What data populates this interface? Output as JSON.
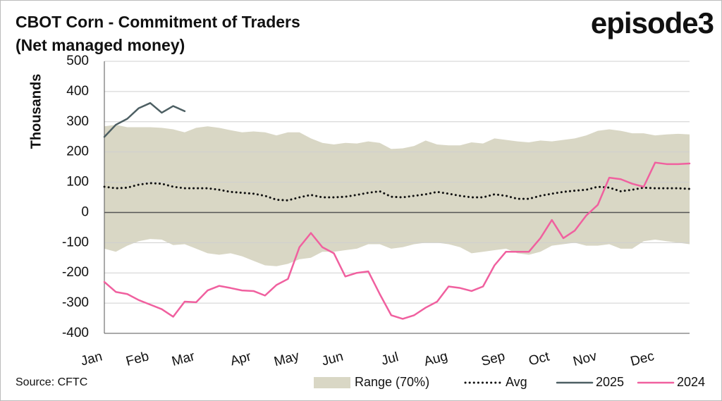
{
  "chart_data": {
    "type": "line",
    "title": "CBOT Corn - Commitment of Traders",
    "subtitle": "(Net managed money)",
    "y_label": "Thousands",
    "categories": [
      "Jan",
      null,
      null,
      null,
      "Feb",
      null,
      null,
      null,
      "Mar",
      null,
      null,
      null,
      null,
      "Apr",
      null,
      null,
      null,
      "May",
      null,
      null,
      null,
      "Jun",
      null,
      null,
      null,
      null,
      "Jul",
      null,
      null,
      null,
      "Aug",
      null,
      null,
      null,
      null,
      "Sep",
      null,
      null,
      null,
      "Oct",
      null,
      null,
      null,
      "Nov",
      null,
      null,
      null,
      null,
      "Dec",
      null,
      null,
      null
    ],
    "ylim": [
      -400,
      500
    ],
    "yticks": [
      500,
      400,
      300,
      200,
      100,
      0,
      -100,
      -200,
      -300,
      -400
    ],
    "grid": true,
    "range": {
      "name": "Range (70%)",
      "color": "#d9d7c5",
      "upper": [
        285,
        290,
        282,
        282,
        282,
        280,
        275,
        265,
        280,
        285,
        280,
        272,
        265,
        268,
        265,
        255,
        265,
        265,
        245,
        230,
        225,
        230,
        228,
        235,
        230,
        210,
        212,
        220,
        238,
        225,
        222,
        222,
        232,
        228,
        245,
        240,
        235,
        232,
        238,
        235,
        240,
        245,
        255,
        270,
        275,
        270,
        262,
        262,
        255,
        258,
        260,
        258
      ],
      "lower": [
        -120,
        -130,
        -110,
        -95,
        -88,
        -90,
        -108,
        -105,
        -120,
        -135,
        -140,
        -135,
        -145,
        -160,
        -175,
        -178,
        -170,
        -155,
        -150,
        -130,
        -130,
        -125,
        -120,
        -105,
        -105,
        -120,
        -115,
        -105,
        -100,
        -100,
        -105,
        -115,
        -135,
        -130,
        -125,
        -120,
        -135,
        -140,
        -130,
        -110,
        -105,
        -100,
        -110,
        -110,
        -105,
        -120,
        -120,
        -95,
        -90,
        -95,
        -100,
        -105
      ]
    },
    "series": [
      {
        "name": "Avg",
        "color": "#111111",
        "style": "dotted",
        "values": [
          85,
          80,
          82,
          92,
          97,
          95,
          85,
          80,
          80,
          80,
          75,
          68,
          65,
          62,
          55,
          42,
          40,
          50,
          58,
          50,
          50,
          52,
          58,
          65,
          70,
          52,
          50,
          55,
          60,
          68,
          62,
          55,
          50,
          50,
          60,
          55,
          45,
          45,
          55,
          62,
          68,
          72,
          75,
          85,
          82,
          70,
          75,
          82,
          80,
          80,
          80,
          78
        ]
      },
      {
        "name": "2025",
        "color": "#4d5f63",
        "style": "solid",
        "values": [
          250,
          290,
          310,
          345,
          362,
          330,
          352,
          335,
          null,
          null,
          null,
          null,
          null,
          null,
          null,
          null,
          null,
          null,
          null,
          null,
          null,
          null,
          null,
          null,
          null,
          null,
          null,
          null,
          null,
          null,
          null,
          null,
          null,
          null,
          null,
          null,
          null,
          null,
          null,
          null,
          null,
          null,
          null,
          null,
          null,
          null,
          null,
          null,
          null,
          null,
          null,
          null
        ]
      },
      {
        "name": "2024",
        "color": "#f0609f",
        "style": "solid",
        "values": [
          -230,
          -263,
          -270,
          -290,
          -305,
          -320,
          -345,
          -295,
          -297,
          -258,
          -243,
          -250,
          -258,
          -260,
          -275,
          -240,
          -220,
          -115,
          -68,
          -115,
          -135,
          -212,
          -200,
          -195,
          -270,
          -340,
          -352,
          -340,
          -315,
          -295,
          -245,
          -250,
          -260,
          -245,
          -175,
          -130,
          -130,
          -130,
          -85,
          -25,
          -85,
          -60,
          -10,
          25,
          115,
          110,
          95,
          85,
          165,
          160,
          160,
          162
        ]
      }
    ]
  },
  "logo": "episode3",
  "source": "Source: CFTC"
}
